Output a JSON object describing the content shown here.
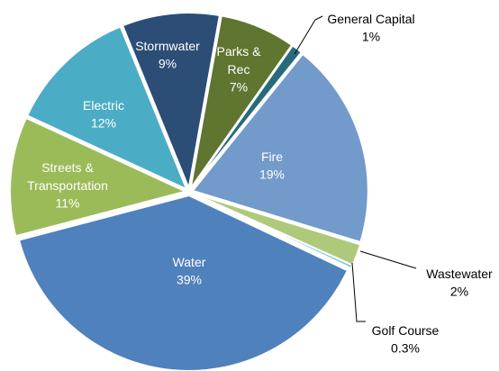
{
  "chart_data": {
    "type": "pie",
    "categories": [
      "Water",
      "Streets & Transportation",
      "Electric",
      "Stormwater",
      "Parks & Rec",
      "General Capital",
      "Fire",
      "Wastewater",
      "Golf Course"
    ],
    "values": [
      39,
      11,
      12,
      9,
      7,
      1,
      19,
      2,
      0.3
    ],
    "value_labels": [
      "39%",
      "11%",
      "12%",
      "9%",
      "7%",
      "1%",
      "19%",
      "2%",
      "0.3%"
    ],
    "colors": [
      "#4f81bd",
      "#9bbb59",
      "#4bacc6",
      "#2c4d75",
      "#5f7530",
      "#276a7c",
      "#729aca",
      "#afc97a",
      "#6fc3d8"
    ]
  }
}
